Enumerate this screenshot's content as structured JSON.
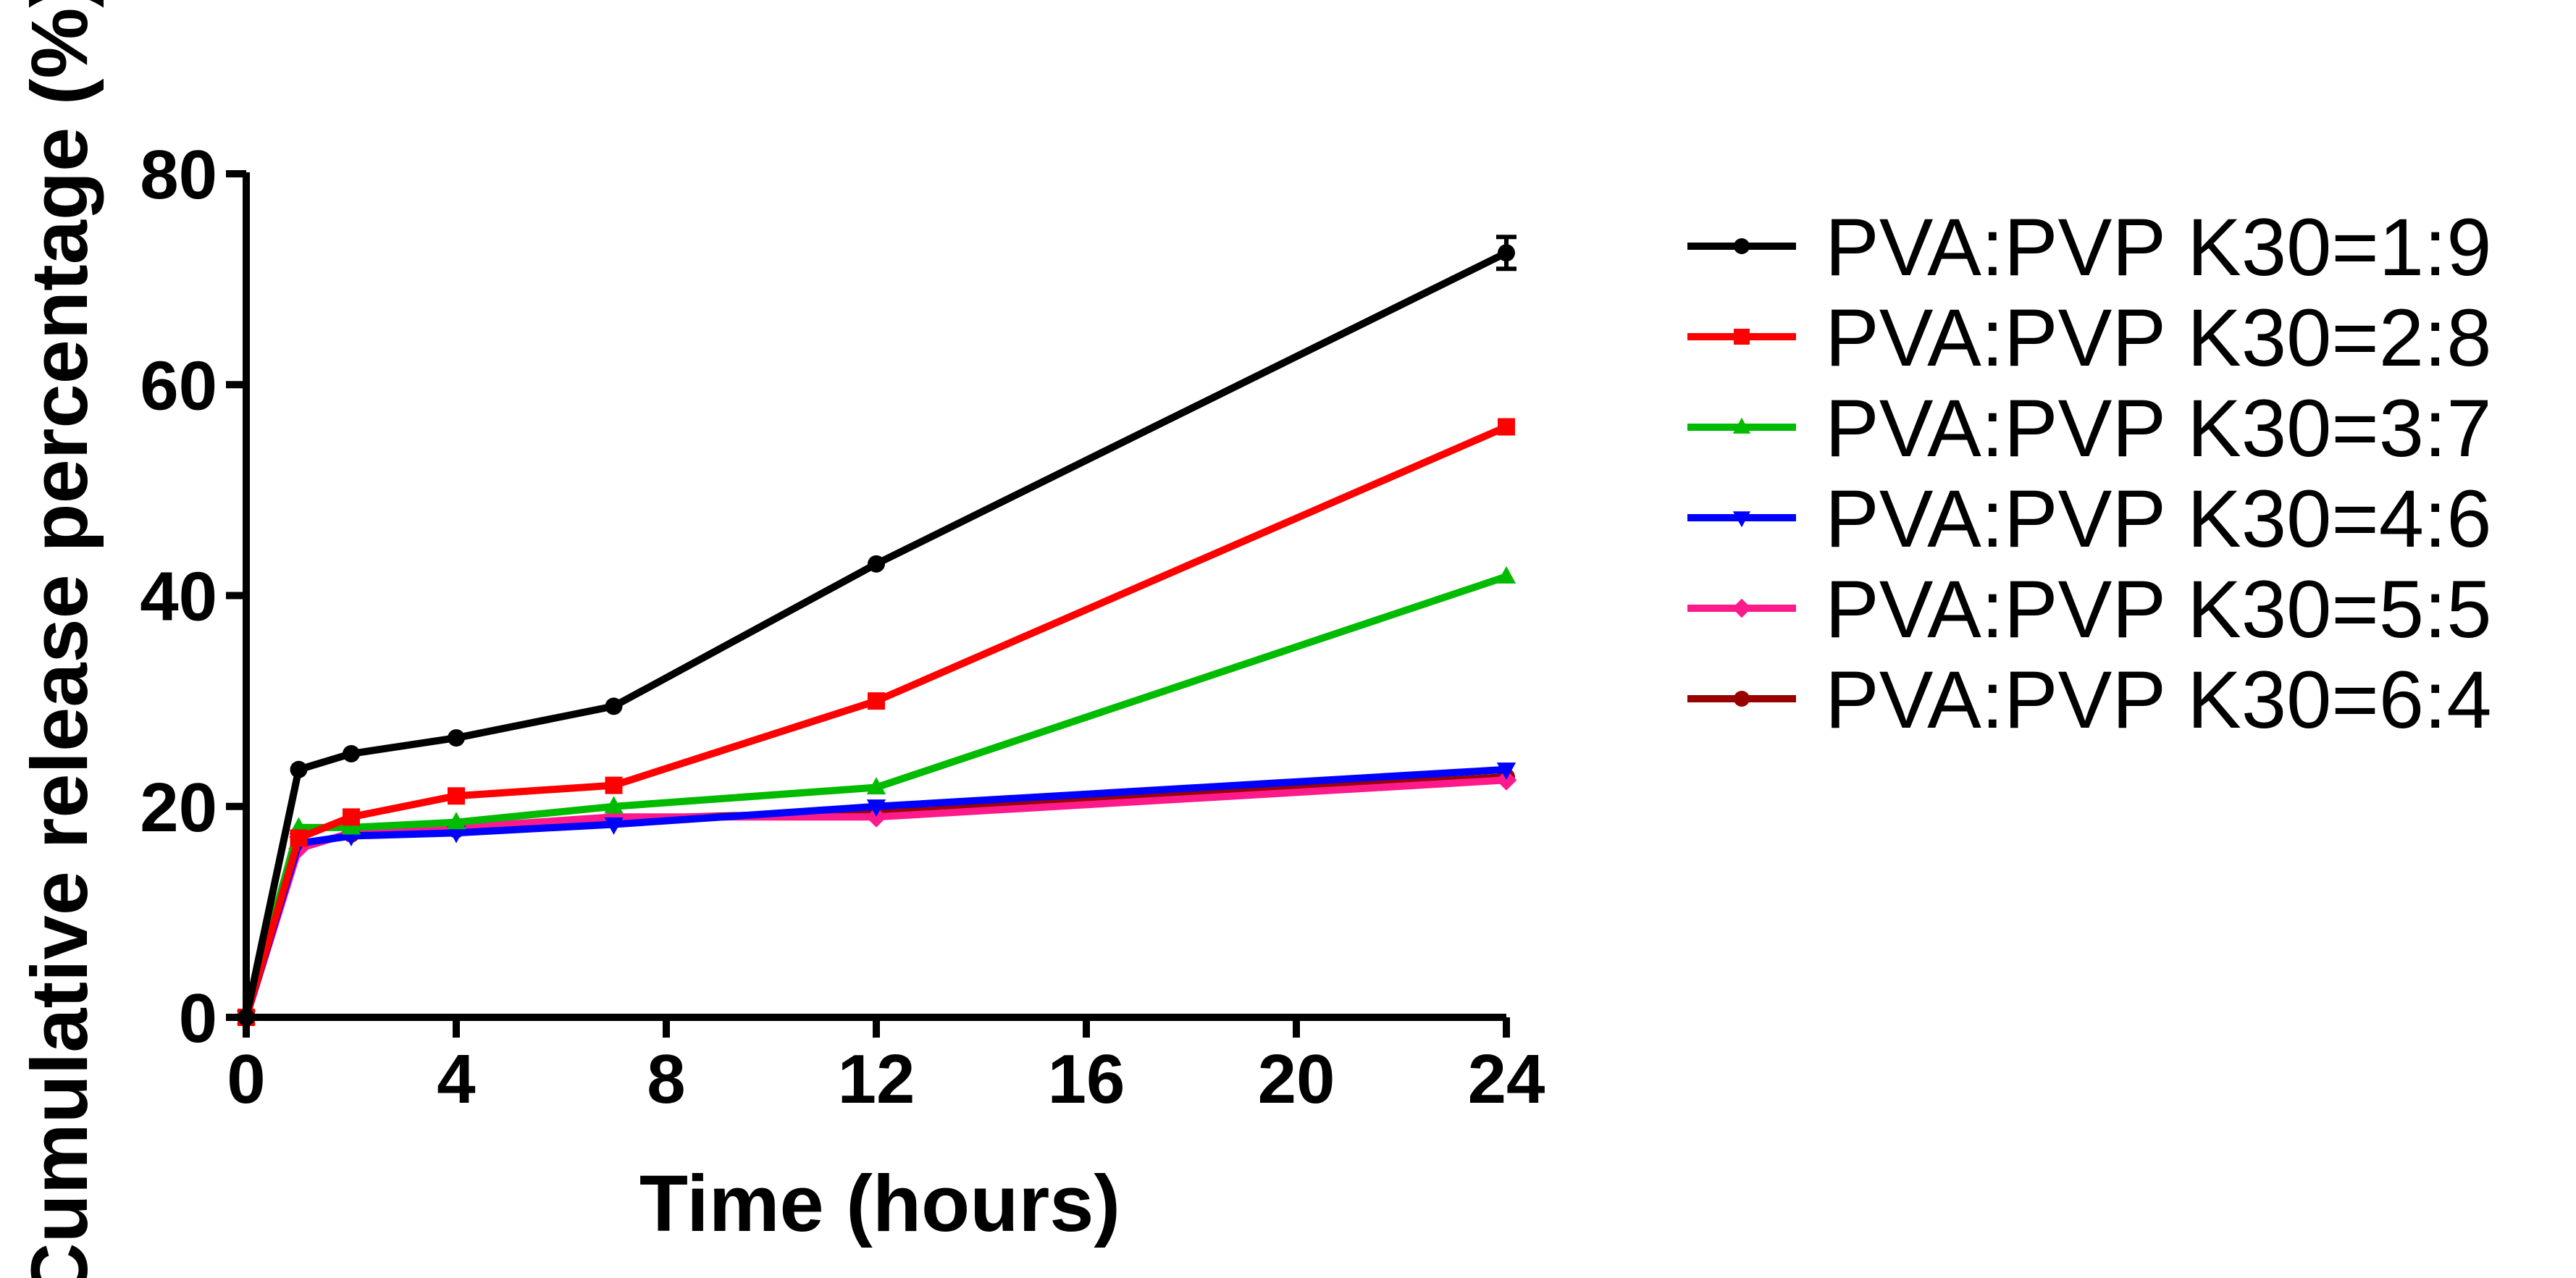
{
  "chart_data": {
    "type": "line",
    "title": "",
    "xlabel": "Time (hours)",
    "ylabel": "Cumulative release percentage (%)",
    "xlim": [
      0,
      24
    ],
    "ylim": [
      0,
      80
    ],
    "x_ticks": [
      0,
      4,
      8,
      12,
      16,
      20,
      24
    ],
    "y_ticks": [
      0,
      20,
      40,
      60,
      80
    ],
    "x_tick_labels": [
      "0",
      "4",
      "8",
      "12",
      "16",
      "20",
      "24"
    ],
    "y_tick_labels": [
      "0",
      "20",
      "40",
      "60",
      "80"
    ],
    "grid": false,
    "legend_position": "right",
    "series": [
      {
        "name": "PVA:PVP K30=1:9",
        "color": "#000000",
        "marker": "circle",
        "x": [
          0,
          1,
          2,
          4,
          7,
          12,
          24
        ],
        "values": [
          0,
          23.5,
          25,
          26.5,
          29.5,
          43,
          72.5
        ]
      },
      {
        "name": "PVA:PVP K30=2:8",
        "color": "#ff0000",
        "marker": "square",
        "x": [
          0,
          1,
          2,
          4,
          7,
          12,
          24
        ],
        "values": [
          0,
          17,
          19,
          21,
          22,
          30,
          56
        ]
      },
      {
        "name": "PVA:PVP K30=3:7",
        "color": "#00bb00",
        "marker": "triangle-up",
        "x": [
          0,
          1,
          2,
          4,
          7,
          12,
          24
        ],
        "values": [
          0,
          18,
          18,
          18.5,
          20,
          21.8,
          41.8
        ]
      },
      {
        "name": "PVA:PVP K30=4:6",
        "color": "#0000ff",
        "marker": "triangle-down",
        "x": [
          0,
          1,
          2,
          4,
          7,
          12,
          24
        ],
        "values": [
          0,
          16.5,
          17.2,
          17.5,
          18.3,
          20,
          23.5
        ]
      },
      {
        "name": "PVA:PVP K30=5:5",
        "color": "#ff1a8c",
        "marker": "diamond",
        "x": [
          0,
          1,
          2,
          4,
          7,
          12,
          24
        ],
        "values": [
          0,
          16,
          17.5,
          18,
          19,
          19,
          22.5
        ]
      },
      {
        "name": "PVA:PVP K30=6:4",
        "color": "#990000",
        "marker": "circle",
        "x": [
          0,
          1,
          2,
          4,
          7,
          12,
          24
        ],
        "values": [
          0,
          16.2,
          17.4,
          17.8,
          18.8,
          19.5,
          22.8
        ]
      }
    ]
  }
}
